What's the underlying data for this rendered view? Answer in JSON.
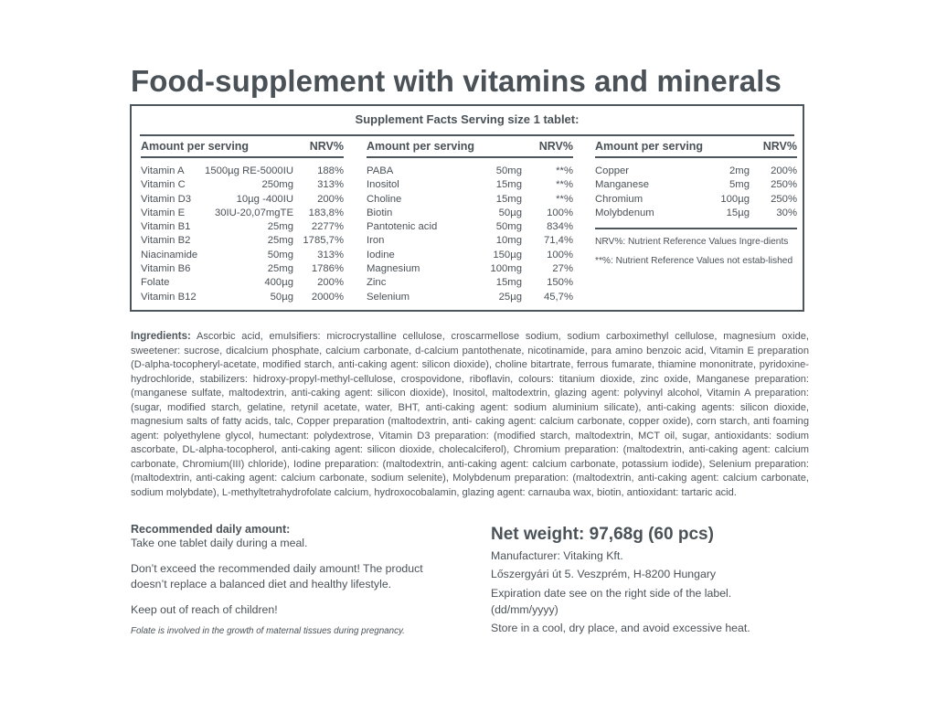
{
  "title": "Food-supplement with vitamins and minerals",
  "facts": {
    "header": "Supplement Facts Serving size 1 tablet:",
    "col_amount_label": "Amount per serving",
    "col_nrv_label": "NRV%",
    "col1": [
      {
        "name": "Vitamin A",
        "amount": "1500µg RE-5000IU",
        "nrv": "188%"
      },
      {
        "name": "Vitamin C",
        "amount": "250mg",
        "nrv": "313%"
      },
      {
        "name": "Vitamin D3",
        "amount": "10µg -400IU",
        "nrv": "200%"
      },
      {
        "name": "Vitamin E",
        "amount": "30IU-20,07mgTE",
        "nrv": "183,8%"
      },
      {
        "name": "Vitamin B1",
        "amount": "25mg",
        "nrv": "2277%"
      },
      {
        "name": "Vitamin B2",
        "amount": "25mg",
        "nrv": "1785,7%"
      },
      {
        "name": "Niacinamide",
        "amount": "50mg",
        "nrv": "313%"
      },
      {
        "name": "Vitamin B6",
        "amount": "25mg",
        "nrv": "1786%"
      },
      {
        "name": "Folate",
        "amount": "400µg",
        "nrv": "200%"
      },
      {
        "name": "Vitamin B12",
        "amount": "50µg",
        "nrv": "2000%"
      }
    ],
    "col2": [
      {
        "name": "PABA",
        "amount": "50mg",
        "nrv": "**%"
      },
      {
        "name": "Inositol",
        "amount": "15mg",
        "nrv": "**%"
      },
      {
        "name": "Choline",
        "amount": "15mg",
        "nrv": "**%"
      },
      {
        "name": "Biotin",
        "amount": "50µg",
        "nrv": "100%"
      },
      {
        "name": "Pantotenic acid",
        "amount": "50mg",
        "nrv": "834%"
      },
      {
        "name": "Iron",
        "amount": "10mg",
        "nrv": "71,4%"
      },
      {
        "name": "Iodine",
        "amount": "150µg",
        "nrv": "100%"
      },
      {
        "name": "Magnesium",
        "amount": "100mg",
        "nrv": "27%"
      },
      {
        "name": "Zinc",
        "amount": "15mg",
        "nrv": "150%"
      },
      {
        "name": "Selenium",
        "amount": "25µg",
        "nrv": "45,7%"
      }
    ],
    "col3": [
      {
        "name": "Copper",
        "amount": "2mg",
        "nrv": "200%"
      },
      {
        "name": "Manganese",
        "amount": "5mg",
        "nrv": "250%"
      },
      {
        "name": "Chromium",
        "amount": "100µg",
        "nrv": "250%"
      },
      {
        "name": "Molybdenum",
        "amount": "15µg",
        "nrv": "30%"
      }
    ],
    "note1": "NRV%: Nutrient Reference Values Ingre-dients",
    "note2": "**%: Nutrient Reference Values not estab-lished"
  },
  "ingredients": {
    "label": "Ingredients:",
    "text": " Ascorbic acid, emulsifiers: microcrystalline cellulose, croscarmellose sodium, sodium carboximethyl cellulose, magnesium oxide, sweetener: sucrose, dicalcium phosphate, calcium carbonate, d-calcium pantothenate, nicotinamide, para amino benzoic acid, Vitamin E preparation (D-alpha-tocopheryl-acetate, modified starch, anti-caking agent: silicon dioxide), choline bitartrate, ferrous fumarate, thiamine mononitrate, pyridoxine-hydrochloride, stabilizers: hidroxy-propyl-methyl-cellulose, crospovidone, riboflavin, colours: titanium dioxide, zinc oxide, Manganese preparation: (manganese sulfate, maltodextrin, anti-caking agent: silicon dioxide), Inositol, maltodextrin, glazing agent: polyvinyl alcohol, Vitamin A preparation: (sugar, modified starch, gelatine, retynil acetate, water, BHT, anti-caking agent: sodium aluminium silicate), anti-caking agents: silicon dioxide, magnesium salts of fatty acids, talc, Copper preparation (maltodextrin, anti- caking agent: calcium carbonate, copper oxide), corn starch, anti foaming agent: polyethylene glycol, humectant: polydextrose, Vitamin D3 preparation: (modified starch, maltodextrin, MCT oil, sugar, antioxidants: sodium ascorbate, DL-alpha-tocopherol, anti-caking agent: silicon dioxide, cholecalciferol), Chromium preparation: (maltodextrin, anti-caking agent: calcium carbonate, Chromium(III) chloride), Iodine preparation: (maltodextrin, anti-caking agent: calcium carbonate, potassium iodide), Selenium preparation: (maltodextrin, anti-caking agent: calcium carbonate, sodium selenite), Molybdenum preparation: (maltodextrin, anti-caking agent: calcium carbonate, sodium molybdate), L-methyltetrahydrofolate calcium, hydroxocobalamin, glazing agent: carnauba wax, biotin, antioxidant: tartaric acid."
  },
  "recommended": {
    "title": "Recommended daily amount:",
    "line1": "Take one tablet daily during a meal.",
    "warning": "Don’t exceed the recommended daily amount! The product doesn’t replace a balanced diet and healthy lifestyle.",
    "children": "Keep out of reach of children!",
    "folate_note": "Folate is involved in the growth of maternal tissues during pregnancy."
  },
  "product": {
    "net_weight": "Net weight: 97,68g (60 pcs)",
    "manufacturer": "Manufacturer: Vitaking Kft.",
    "address": "Lőszergyári út 5. Veszprém, H-8200 Hungary",
    "expiration": "Expiration date see on the right side of the label. (dd/mm/yyyy)",
    "storage": "Store in a cool, dry place, and avoid excessive heat."
  }
}
